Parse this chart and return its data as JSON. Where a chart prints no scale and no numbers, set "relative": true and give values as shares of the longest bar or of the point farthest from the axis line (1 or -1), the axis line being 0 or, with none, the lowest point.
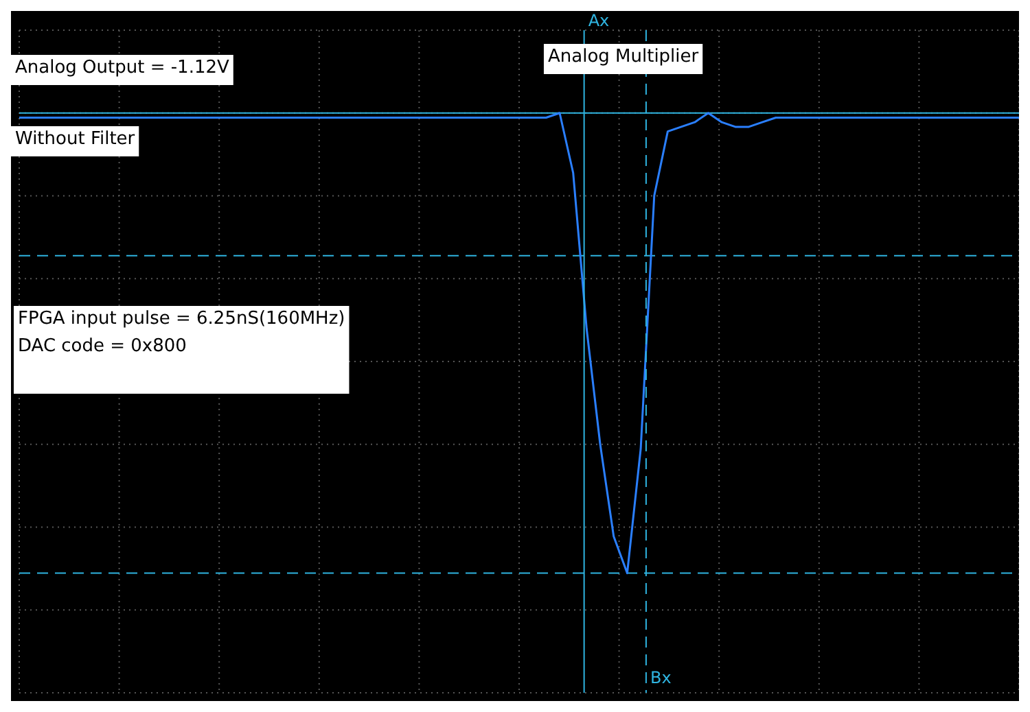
{
  "chart_data": {
    "type": "line",
    "title": "Analog Multiplier",
    "relative": true,
    "grid": true,
    "legend": false,
    "marker": "none",
    "line_style": "solid",
    "categories": [
      null,
      null,
      null,
      null,
      null,
      null,
      null,
      null,
      null,
      null,
      null,
      null,
      null,
      null,
      null,
      null,
      null,
      null,
      null,
      null,
      null,
      null,
      null,
      null,
      null,
      null,
      null,
      null,
      null,
      null,
      null,
      null,
      null,
      null,
      null,
      null,
      null,
      null,
      null,
      null,
      null,
      null,
      null,
      null,
      null,
      null,
      null,
      null,
      null,
      null,
      null,
      null,
      null,
      null,
      null,
      null,
      null,
      null,
      null,
      null,
      null,
      null,
      null,
      null,
      null,
      null,
      null,
      null,
      null,
      null,
      null,
      null,
      null,
      null,
      null
    ],
    "series": [
      {
        "color": "#2a7fff",
        "values": [
          0.99,
          0.99,
          0.99,
          0.99,
          0.99,
          0.99,
          0.99,
          0.99,
          0.99,
          0.99,
          0.99,
          0.99,
          0.99,
          0.99,
          0.99,
          0.99,
          0.99,
          0.99,
          0.99,
          0.99,
          0.99,
          0.99,
          0.99,
          0.99,
          0.99,
          0.99,
          0.99,
          0.99,
          0.99,
          0.99,
          0.99,
          0.99,
          0.99,
          0.99,
          0.99,
          0.99,
          0.99,
          0.99,
          0.99,
          0.99,
          1,
          0.87,
          0.53,
          0.28,
          0.08,
          0,
          0.27,
          0.82,
          0.96,
          0.97,
          0.98,
          1,
          0.98,
          0.97,
          0.97,
          0.98,
          0.99,
          0.99,
          0.99,
          0.99,
          0.99,
          0.99,
          0.99,
          0.99,
          0.99,
          0.99,
          0.99,
          0.99,
          0.99,
          0.99,
          0.99,
          0.99,
          0.99,
          0.99,
          0.99
        ]
      }
    ],
    "ref_lines": [
      {
        "axis": "y",
        "value": 1,
        "color": "#2fb4e0",
        "line_style": "solid"
      },
      {
        "axis": "y",
        "value": 0.69,
        "color": "#2fb4e0",
        "line_style": "dashed"
      },
      {
        "axis": "y",
        "value": 0,
        "color": "#2fb4e0",
        "line_style": "dashed"
      }
    ],
    "annotations": [
      "Analog Output = -1.12V",
      "Without Filter",
      "FPGA input pulse = 6.25nS(160MHz)\nDAC code = 0x800",
      "Ax",
      "Bx"
    ]
  }
}
